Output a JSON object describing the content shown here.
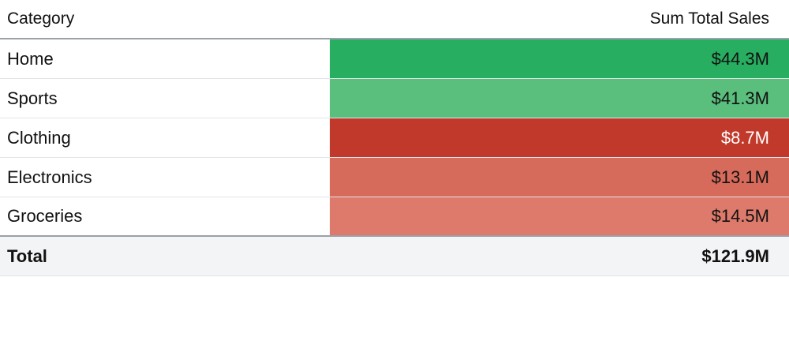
{
  "table": {
    "headers": {
      "category": "Category",
      "value": "Sum Total Sales"
    },
    "rows": [
      {
        "category": "Home",
        "value": "$44.3M",
        "color": "#27ae60",
        "text_color": "#111111"
      },
      {
        "category": "Sports",
        "value": "$41.3M",
        "color": "#5abe7d",
        "text_color": "#111111"
      },
      {
        "category": "Clothing",
        "value": "$8.7M",
        "color": "#c0392b",
        "text_color": "#ffffff"
      },
      {
        "category": "Electronics",
        "value": "$13.1M",
        "color": "#d66b5b",
        "text_color": "#111111"
      },
      {
        "category": "Groceries",
        "value": "$14.5M",
        "color": "#dd7a6b",
        "text_color": "#111111"
      }
    ],
    "total": {
      "label": "Total",
      "value": "$121.9M"
    }
  },
  "chart_data": {
    "type": "table",
    "columns": [
      "Category",
      "Sum Total Sales"
    ],
    "categories": [
      "Home",
      "Sports",
      "Clothing",
      "Electronics",
      "Groceries"
    ],
    "values": [
      44.3,
      41.3,
      8.7,
      13.1,
      14.5
    ],
    "value_labels": [
      "$44.3M",
      "$41.3M",
      "$8.7M",
      "$13.1M",
      "$14.5M"
    ],
    "total": 121.9,
    "total_label": "$121.9M",
    "color_scale": {
      "low": "#c0392b",
      "high": "#27ae60"
    }
  }
}
